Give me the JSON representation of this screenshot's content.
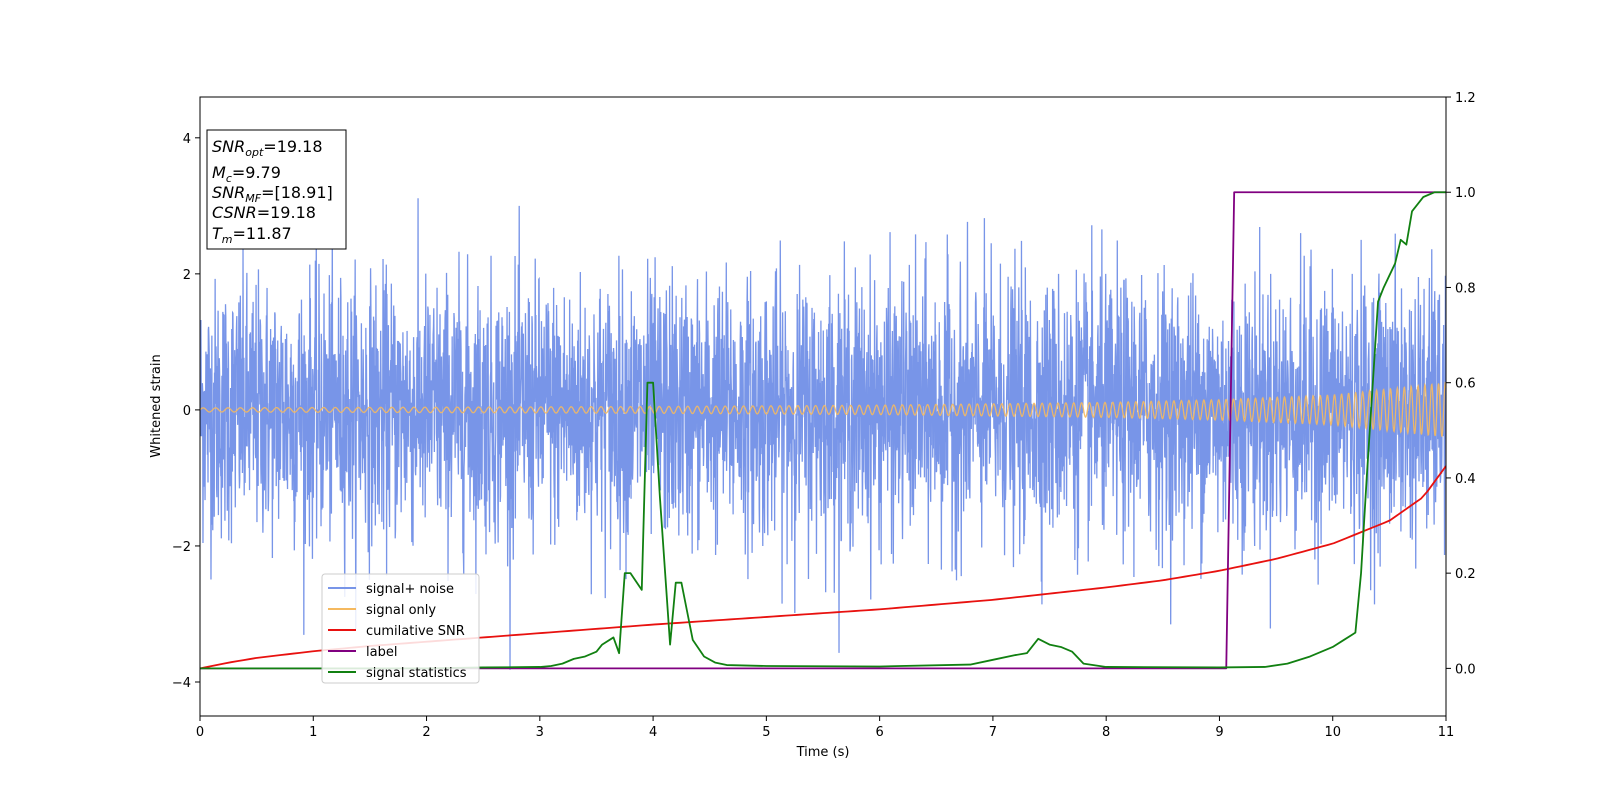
{
  "chart_data": {
    "type": "line",
    "xlabel": "Time (s)",
    "ylabel": "Whitened strain",
    "xlim": [
      0,
      11
    ],
    "ylim_left": [
      -4.5,
      4.6
    ],
    "ylim_right": [
      -0.1,
      1.2
    ],
    "x_ticks": [
      "0",
      "1",
      "2",
      "3",
      "4",
      "5",
      "6",
      "7",
      "8",
      "9",
      "10",
      "11"
    ],
    "y_ticks_left": [
      "−4",
      "−2",
      "0",
      "2",
      "4"
    ],
    "y_ticks_right": [
      "0.0",
      "0.2",
      "0.4",
      "0.6",
      "0.8",
      "1.0",
      "1.2"
    ],
    "legend_position": "lower-left",
    "grid": false,
    "annotation": {
      "snr_opt": {
        "symbol": "SNR",
        "sub": "opt",
        "value": "=19.18"
      },
      "mc": {
        "symbol": "M",
        "sub": "c",
        "value": "=9.79"
      },
      "snr_mf": {
        "symbol": "SNR",
        "sub": "MF",
        "value": "=[18.91]"
      },
      "csnr": {
        "symbol": "CSNR",
        "sub": "",
        "value": "=19.18"
      },
      "tm": {
        "symbol": "T",
        "sub": "m",
        "value": "=11.87"
      }
    },
    "series": [
      {
        "name": "signal+ noise",
        "color": "#7895e8",
        "axis": "left",
        "description_kind": "noise",
        "noise_std": 0.95,
        "noise_max": 4.05,
        "noise_min": -4.1
      },
      {
        "name": "signal only",
        "color": "#f5b95f",
        "axis": "left",
        "description_kind": "chirp",
        "amplitude_points": {
          "x": [
            0,
            2,
            4,
            6,
            8,
            9,
            10,
            11
          ],
          "y": [
            0.03,
            0.04,
            0.05,
            0.07,
            0.11,
            0.15,
            0.22,
            0.4
          ]
        }
      },
      {
        "name": "cumilative SNR",
        "color": "#e8110f",
        "axis": "right",
        "x": [
          0,
          0.25,
          0.5,
          1,
          1.5,
          2,
          3,
          4,
          5,
          6,
          7,
          8,
          8.5,
          9,
          9.5,
          10,
          10.5,
          10.8,
          11
        ],
        "y": [
          0.0,
          0.012,
          0.022,
          0.036,
          0.047,
          0.056,
          0.074,
          0.092,
          0.108,
          0.124,
          0.144,
          0.17,
          0.185,
          0.205,
          0.23,
          0.262,
          0.31,
          0.36,
          0.425
        ]
      },
      {
        "name": "label",
        "color": "#800080",
        "axis": "right",
        "x": [
          0,
          9.06,
          9.13,
          11
        ],
        "y": [
          0.0,
          0.0,
          1.0,
          1.0
        ]
      },
      {
        "name": "signal statistics",
        "color": "#118011",
        "axis": "right",
        "x": [
          0,
          1,
          2,
          2.5,
          3,
          3.1,
          3.2,
          3.3,
          3.4,
          3.5,
          3.55,
          3.65,
          3.7,
          3.75,
          3.8,
          3.9,
          3.95,
          4.0,
          4.06,
          4.15,
          4.2,
          4.25,
          4.3,
          4.35,
          4.45,
          4.55,
          4.65,
          5,
          6,
          6.8,
          7.0,
          7.2,
          7.3,
          7.4,
          7.5,
          7.6,
          7.7,
          7.8,
          8.0,
          9.0,
          9.4,
          9.6,
          9.8,
          9.9,
          10.0,
          10.1,
          10.2,
          10.25,
          10.3,
          10.4,
          10.45,
          10.5,
          10.55,
          10.6,
          10.65,
          10.7,
          10.8,
          10.9,
          11
        ],
        "y": [
          0.0,
          0.0,
          0.0,
          0.002,
          0.003,
          0.005,
          0.01,
          0.02,
          0.025,
          0.035,
          0.05,
          0.065,
          0.032,
          0.2,
          0.2,
          0.165,
          0.6,
          0.6,
          0.36,
          0.05,
          0.18,
          0.18,
          0.12,
          0.06,
          0.025,
          0.012,
          0.007,
          0.005,
          0.004,
          0.008,
          0.018,
          0.028,
          0.032,
          0.062,
          0.05,
          0.045,
          0.035,
          0.01,
          0.003,
          0.002,
          0.003,
          0.01,
          0.025,
          0.035,
          0.045,
          0.06,
          0.075,
          0.2,
          0.4,
          0.77,
          0.8,
          0.825,
          0.85,
          0.9,
          0.89,
          0.96,
          0.99,
          1.0,
          1.0
        ]
      }
    ]
  }
}
